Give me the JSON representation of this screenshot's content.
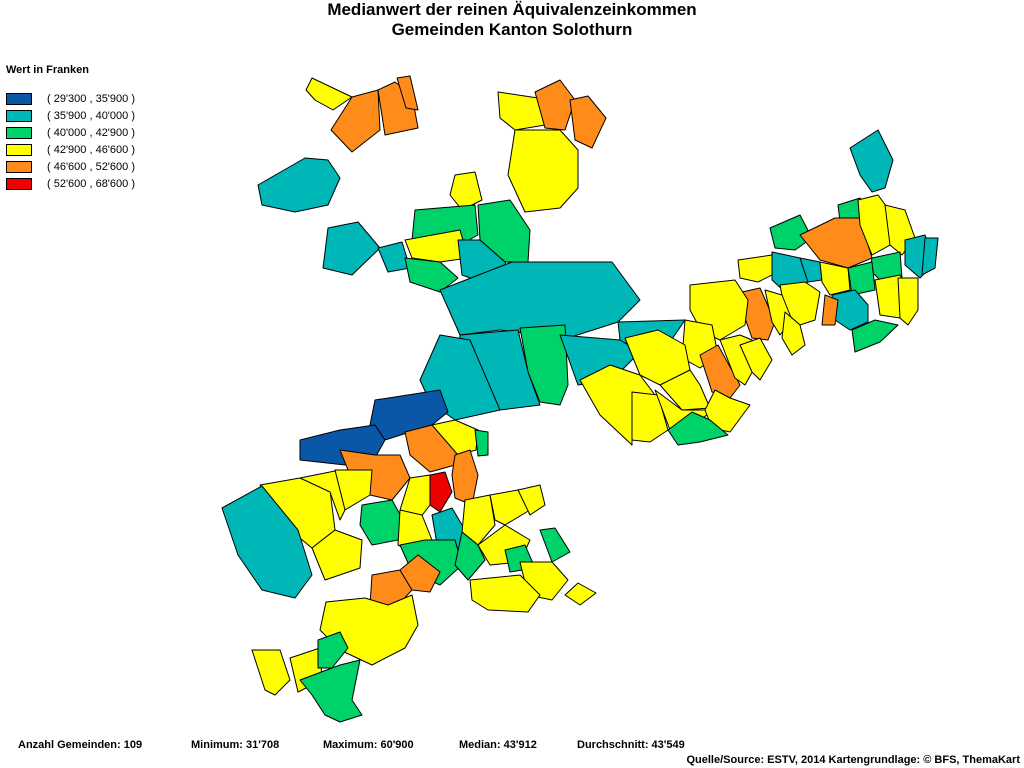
{
  "title": {
    "line1": "Medianwert der reinen Äquivalenzeinkommen",
    "line2": "Gemeinden Kanton Solothurn"
  },
  "legend": {
    "title": "Wert in Franken",
    "classes": [
      {
        "label": "( 29'300 , 35'900 )",
        "color": "#0a57a8"
      },
      {
        "label": "( 35'900 , 40'000 )",
        "color": "#00b7b7"
      },
      {
        "label": "( 40'000 , 42'900 )",
        "color": "#00d26a"
      },
      {
        "label": "( 42'900 , 46'600 )",
        "color": "#ffff00"
      },
      {
        "label": "( 46'600 , 52'600 )",
        "color": "#ff8c1a"
      },
      {
        "label": "( 52'600 , 68'600 )",
        "color": "#ee0000"
      }
    ]
  },
  "stats": {
    "count": "Anzahl Gemeinden: 109",
    "minimum": "Minimum: 31'708",
    "maximum": "Maximum: 60'900",
    "median": "Median: 43'912",
    "average": "Durchschnitt: 43'549"
  },
  "source": "Quelle/Source: ESTV, 2014 Kartengrundlage: © BFS, ThemaKart"
}
